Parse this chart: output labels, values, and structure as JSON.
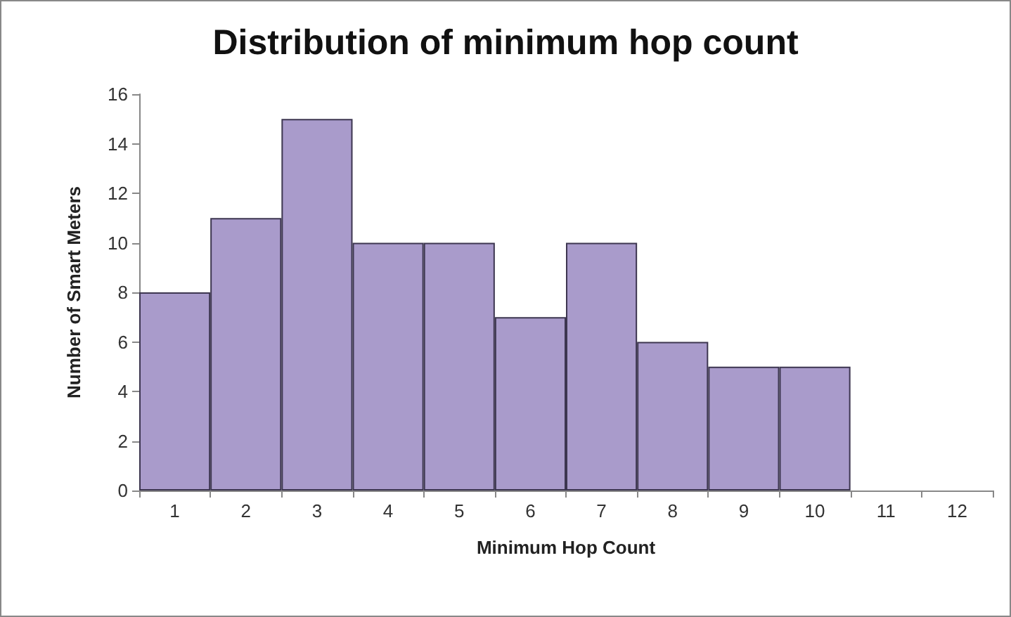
{
  "chart_data": {
    "type": "bar",
    "title": "Distribution of minimum hop count",
    "xlabel": "Minimum Hop Count",
    "ylabel": "Number of Smart Meters",
    "categories": [
      "1",
      "2",
      "3",
      "4",
      "5",
      "6",
      "7",
      "8",
      "9",
      "10",
      "11",
      "12"
    ],
    "values": [
      8,
      11,
      15,
      10,
      10,
      7,
      10,
      6,
      5,
      5,
      0,
      0
    ],
    "color": "#a99bcb",
    "ylim": [
      0,
      16
    ],
    "yticks": [
      0,
      2,
      4,
      6,
      8,
      10,
      12,
      14,
      16
    ],
    "grid": false
  }
}
